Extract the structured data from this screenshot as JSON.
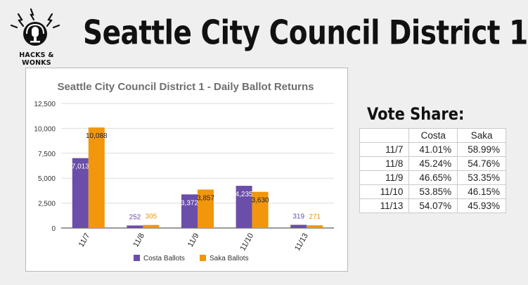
{
  "logo": {
    "text": "HACKS & WONKS"
  },
  "header": {
    "title": "Seattle City Council District 1"
  },
  "chart_data": {
    "type": "bar",
    "title": "Seattle City Council District 1 - Daily Ballot Returns",
    "categories": [
      "11/7",
      "11/8",
      "11/9",
      "11/10",
      "11/13"
    ],
    "series": [
      {
        "name": "Costa Ballots",
        "values": [
          7013,
          252,
          3372,
          4235,
          319
        ],
        "labels": [
          "7,013",
          "252",
          "3,372",
          "4,235",
          "319"
        ],
        "color": "#6a4ea9"
      },
      {
        "name": "Saka Ballots",
        "values": [
          10088,
          305,
          3857,
          3630,
          271
        ],
        "labels": [
          "10,088",
          "305",
          "3,857",
          "3,630",
          "271"
        ],
        "color": "#f2960c"
      }
    ],
    "ylim": [
      0,
      12500
    ],
    "yticks": [
      0,
      2500,
      5000,
      7500,
      10000,
      12500
    ],
    "yticklabels": [
      "0",
      "2,500",
      "5,000",
      "7,500",
      "10,000",
      "12,500"
    ],
    "grid": true,
    "legend": "bottom"
  },
  "vote_share": {
    "title": "Vote Share:",
    "columns": [
      "Costa",
      "Saka"
    ],
    "rows": [
      {
        "date": "11/7",
        "costa": "41.01%",
        "saka": "58.99%"
      },
      {
        "date": "11/8",
        "costa": "45.24%",
        "saka": "54.76%"
      },
      {
        "date": "11/9",
        "costa": "46.65%",
        "saka": "53.35%"
      },
      {
        "date": "11/10",
        "costa": "53.85%",
        "saka": "46.15%"
      },
      {
        "date": "11/13",
        "costa": "54.07%",
        "saka": "45.93%"
      }
    ]
  }
}
